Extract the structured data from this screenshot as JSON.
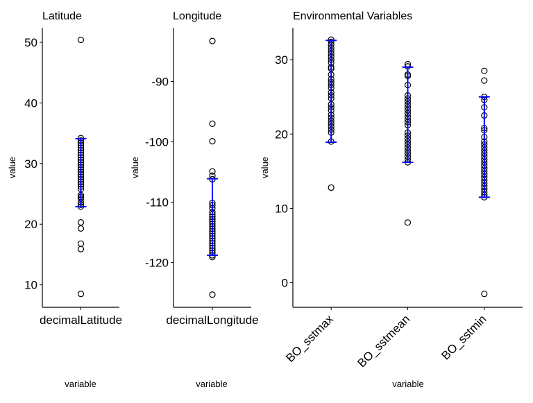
{
  "chart_data": [
    {
      "type": "scatter",
      "title": "Latitude",
      "xlabel": "variable",
      "ylabel": "value",
      "ylim": [
        6.3,
        52.4
      ],
      "yticks": [
        10,
        20,
        30,
        40,
        50
      ],
      "categories": [
        "decimalLatitude"
      ],
      "tick_rotation": 0,
      "grid": false,
      "series": [
        {
          "category": "decimalLatitude",
          "points": [
            50.4,
            34.2,
            33.8,
            33.4,
            33.0,
            32.6,
            32.2,
            31.8,
            31.4,
            31.0,
            30.6,
            30.2,
            29.8,
            29.4,
            29.0,
            28.6,
            28.2,
            27.8,
            27.4,
            27.0,
            26.6,
            26.2,
            25.8,
            24.8,
            24.5,
            24.2,
            23.6,
            23.2,
            22.9,
            20.3,
            19.3,
            16.8,
            15.9,
            8.5
          ],
          "errorbar": [
            22.9,
            34.1
          ]
        }
      ]
    },
    {
      "type": "scatter",
      "title": "Longitude",
      "xlabel": "variable",
      "ylabel": "value",
      "ylim": [
        -127.4,
        -81.1
      ],
      "yticks": [
        -90,
        -100,
        -110,
        -120
      ],
      "categories": [
        "decimalLongitude"
      ],
      "tick_rotation": 0,
      "grid": false,
      "series": [
        {
          "category": "decimalLongitude",
          "points": [
            -83.3,
            -97.0,
            -99.9,
            -104.9,
            -105.6,
            -106.2,
            -110.1,
            -110.5,
            -111.0,
            -111.6,
            -112.0,
            -112.4,
            -112.8,
            -113.2,
            -113.6,
            -114.0,
            -114.4,
            -114.8,
            -115.2,
            -115.6,
            -116.0,
            -116.4,
            -116.8,
            -117.2,
            -117.6,
            -118.0,
            -118.4,
            -118.8,
            -119.1,
            -125.3
          ],
          "errorbar": [
            -118.8,
            -106.1
          ]
        }
      ]
    },
    {
      "type": "scatter",
      "title": "Environmental Variables",
      "xlabel": "variable",
      "ylabel": "value",
      "ylim": [
        -3.3,
        34.3
      ],
      "yticks": [
        0,
        10,
        20,
        30
      ],
      "categories": [
        "BO_sstmax",
        "BO_sstmean",
        "BO_sstmin"
      ],
      "tick_rotation": 45,
      "grid": false,
      "series": [
        {
          "category": "BO_sstmax",
          "points": [
            32.7,
            32.4,
            32.0,
            31.6,
            31.2,
            30.8,
            30.4,
            30.0,
            29.6,
            29.0,
            28.8,
            28.0,
            27.4,
            27.0,
            26.6,
            26.2,
            25.6,
            25.2,
            24.8,
            24.0,
            23.6,
            23.2,
            22.6,
            22.2,
            21.8,
            21.4,
            21.0,
            20.6,
            20.2,
            19.0,
            12.8
          ],
          "errorbar": [
            18.9,
            32.6
          ]
        },
        {
          "category": "BO_sstmean",
          "points": [
            29.4,
            29.1,
            28.0,
            27.8,
            26.6,
            25.2,
            24.8,
            24.4,
            24.0,
            23.6,
            23.2,
            22.8,
            22.4,
            22.0,
            21.6,
            21.2,
            20.2,
            19.8,
            19.4,
            19.0,
            18.6,
            18.2,
            17.8,
            17.4,
            17.0,
            16.6,
            16.2,
            8.1
          ],
          "errorbar": [
            16.2,
            29.0
          ]
        },
        {
          "category": "BO_sstmin",
          "points": [
            28.5,
            27.2,
            25.0,
            24.6,
            23.6,
            22.5,
            20.8,
            20.5,
            19.6,
            19.0,
            18.6,
            18.2,
            17.8,
            17.4,
            17.0,
            16.6,
            16.2,
            15.8,
            15.4,
            15.0,
            14.6,
            14.2,
            13.8,
            13.4,
            13.0,
            12.6,
            12.2,
            11.8,
            11.5,
            -1.5
          ],
          "errorbar": [
            11.5,
            25.0
          ]
        }
      ]
    }
  ],
  "colors": {
    "points": "#000000",
    "errorbar": "#0000ff",
    "axis": "#000000"
  }
}
